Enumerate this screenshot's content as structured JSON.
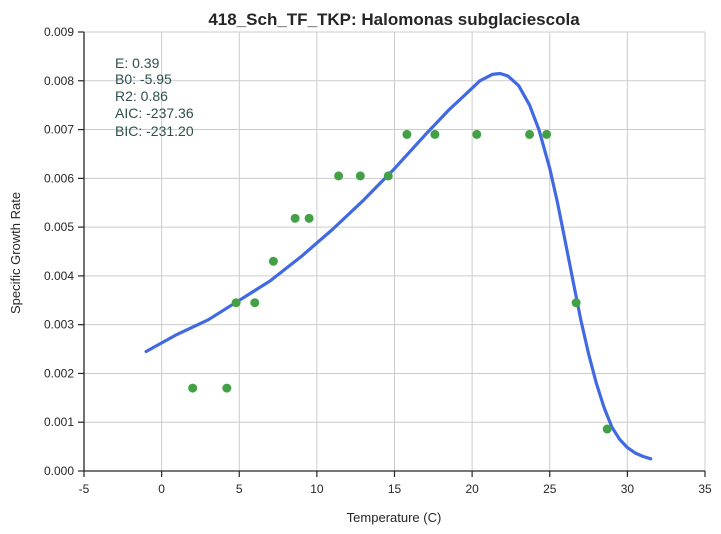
{
  "chart_data": {
    "type": "scatter",
    "title": "418_Sch_TF_TKP: Halomonas subglaciescola",
    "xlabel": "Temperature (C)",
    "ylabel": "Specific Growth Rate",
    "xlim": [
      -5,
      35
    ],
    "ylim": [
      0,
      0.009
    ],
    "xticks": [
      -5,
      0,
      5,
      10,
      15,
      20,
      25,
      30,
      35
    ],
    "yticks": [
      0.0,
      0.001,
      0.002,
      0.003,
      0.004,
      0.005,
      0.006,
      0.007,
      0.008,
      0.009
    ],
    "ytick_labels": [
      "0.000",
      "0.001",
      "0.002",
      "0.003",
      "0.004",
      "0.005",
      "0.006",
      "0.007",
      "0.008",
      "0.009"
    ],
    "grid": true,
    "colors": {
      "points": "#43a047",
      "fit": "#4169e1"
    },
    "stats": [
      "E:  0.39",
      "B0:  -5.95",
      "R2:  0.86",
      "AIC: -237.36",
      "BIC: -231.20"
    ],
    "series": [
      {
        "type": "scatter",
        "x": [
          2.0,
          4.2,
          4.8,
          6.0,
          7.2,
          8.6,
          9.5,
          11.4,
          12.8,
          14.6,
          15.8,
          17.6,
          20.3,
          23.7,
          24.8,
          26.7,
          28.7
        ],
        "y": [
          0.0017,
          0.0017,
          0.00345,
          0.00345,
          0.0043,
          0.00518,
          0.00518,
          0.00605,
          0.00605,
          0.00605,
          0.0069,
          0.0069,
          0.0069,
          0.0069,
          0.0069,
          0.00345,
          0.00086
        ]
      },
      {
        "type": "line",
        "x": [
          -1.0,
          1.0,
          3.0,
          5.0,
          7.0,
          9.0,
          11.0,
          13.0,
          15.0,
          17.0,
          18.5,
          19.5,
          20.5,
          21.3,
          21.8,
          22.3,
          23.0,
          23.7,
          24.3,
          25.0,
          25.5,
          26.0,
          26.5,
          27.0,
          27.5,
          28.0,
          28.5,
          29.0,
          29.5,
          30.0,
          30.5,
          31.0,
          31.5
        ],
        "y": [
          0.00245,
          0.0028,
          0.0031,
          0.0035,
          0.0039,
          0.0044,
          0.00495,
          0.00555,
          0.0062,
          0.0069,
          0.0074,
          0.0077,
          0.008,
          0.00813,
          0.00815,
          0.0081,
          0.0079,
          0.0075,
          0.007,
          0.0062,
          0.0055,
          0.0047,
          0.0039,
          0.0031,
          0.0024,
          0.0018,
          0.0013,
          0.0009,
          0.00065,
          0.00048,
          0.00037,
          0.0003,
          0.00025
        ]
      }
    ]
  }
}
